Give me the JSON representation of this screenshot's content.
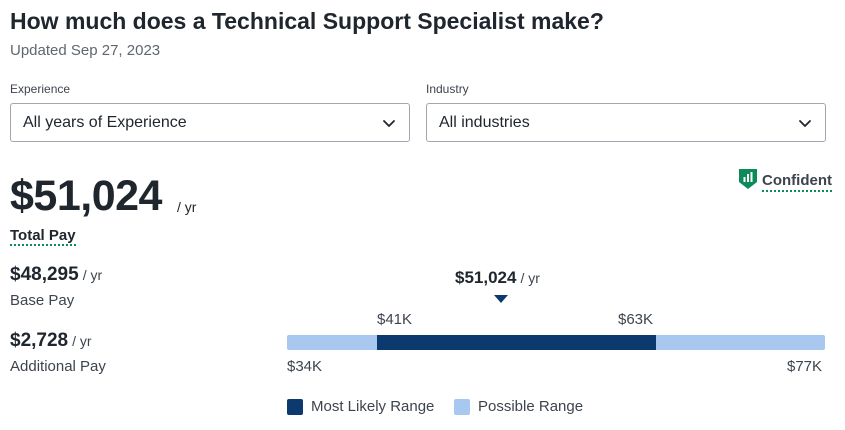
{
  "header": {
    "title": "How much does a Technical Support Specialist make?",
    "updated": "Updated Sep 27, 2023"
  },
  "filters": {
    "experience": {
      "label": "Experience",
      "value": "All years of Experience"
    },
    "industry": {
      "label": "Industry",
      "value": "All industries"
    }
  },
  "confidence": {
    "label": "Confident",
    "color": "#0c8a5a"
  },
  "total_pay": {
    "value": "$51,024",
    "unit": "/ yr",
    "label": "Total Pay"
  },
  "base_pay": {
    "value": "$48,295",
    "unit": "/ yr",
    "label": "Base Pay"
  },
  "additional_pay": {
    "value": "$2,728",
    "unit": "/ yr",
    "label": "Additional Pay"
  },
  "range": {
    "median": {
      "value": "$51,024",
      "unit": "/ yr"
    },
    "likely_low": "$41K",
    "likely_high": "$63K",
    "possible_low": "$34K",
    "possible_high": "$77K"
  },
  "legend": {
    "most_likely": {
      "label": "Most Likely Range",
      "color": "#0d3a6e"
    },
    "possible": {
      "label": "Possible Range",
      "color": "#a9c8ef"
    }
  }
}
